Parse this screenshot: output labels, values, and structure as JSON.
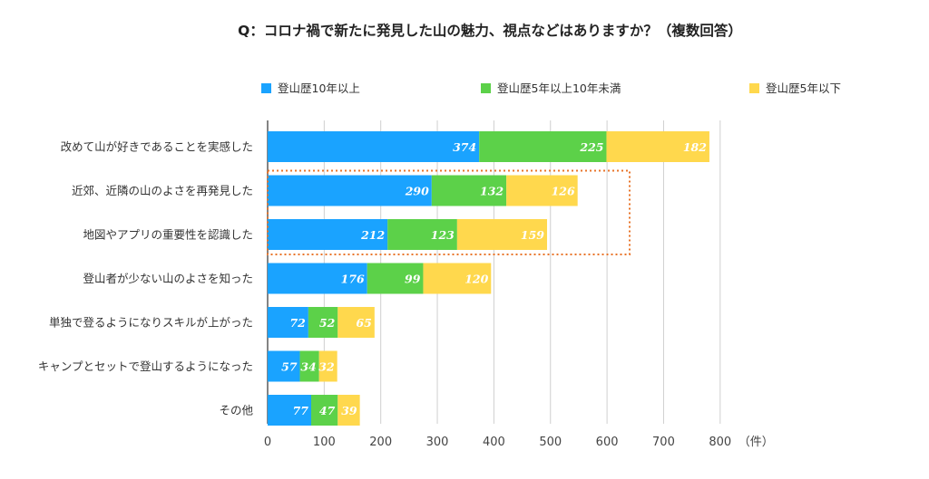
{
  "chart_data": {
    "type": "bar",
    "orientation": "horizontal",
    "stacked": true,
    "title": "Q：コロナ禍で新たに発見した山の魅力、視点などはありますか？（複数回答）",
    "categories": [
      "改めて山が好きであることを実感した",
      "近郊、近隣の山のよさを再発見した",
      "地図やアプリの重要性を認識した",
      "登山者が少ない山のよさを知った",
      "単独で登るようになりスキルが上がった",
      "キャンプとセットで登山するようになった",
      "その他"
    ],
    "series": [
      {
        "name": "登山歴10年以上",
        "color": "#1aa3ff",
        "values": [
          374,
          290,
          212,
          176,
          72,
          57,
          77
        ]
      },
      {
        "name": "登山歴5年以上10年未満",
        "color": "#5cd149",
        "values": [
          225,
          132,
          123,
          99,
          52,
          34,
          47
        ]
      },
      {
        "name": "登山歴5年以下",
        "color": "#ffd84d",
        "values": [
          182,
          126,
          159,
          120,
          65,
          32,
          39
        ]
      }
    ],
    "xlim": [
      0,
      800
    ],
    "xticks": [
      0,
      100,
      200,
      300,
      400,
      500,
      600,
      700,
      800
    ],
    "xunit": "（件）",
    "grid": "vertical",
    "legend_position": "top",
    "highlight": {
      "categories": [
        1,
        2
      ],
      "style": "dotted",
      "color": "#e8742a"
    }
  }
}
